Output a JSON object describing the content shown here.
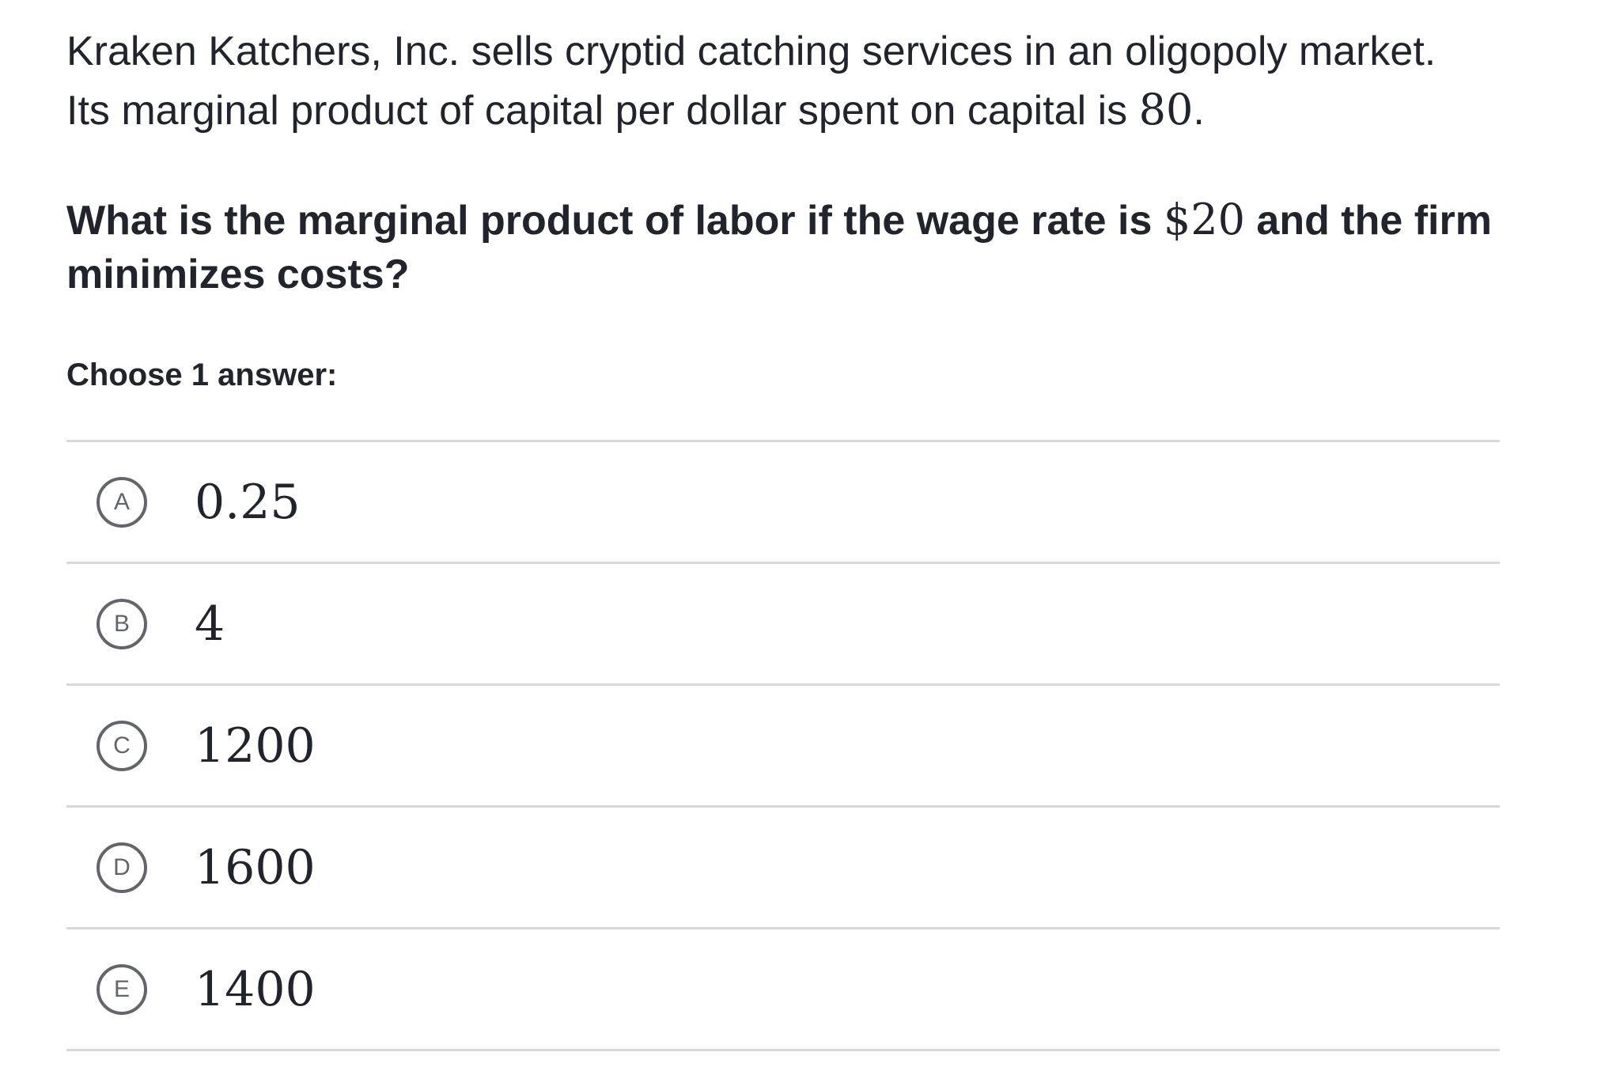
{
  "problem": {
    "intro_line1": "Kraken Katchers, Inc. sells cryptid catching services in an oligopoly market.",
    "intro_line2_text": "Its marginal product of capital per dollar spent on capital is ",
    "intro_line2_value": "80",
    "intro_line2_end": "."
  },
  "question": {
    "text_before": "What is the marginal product of labor if the wage rate is ",
    "wage": "$20",
    "text_after": " and the firm minimizes costs?"
  },
  "prompt": "Choose 1 answer:",
  "choices": [
    {
      "letter": "A",
      "value": "0.25"
    },
    {
      "letter": "B",
      "value": "4"
    },
    {
      "letter": "C",
      "value": "1200"
    },
    {
      "letter": "D",
      "value": "1600"
    },
    {
      "letter": "E",
      "value": "1400"
    }
  ]
}
